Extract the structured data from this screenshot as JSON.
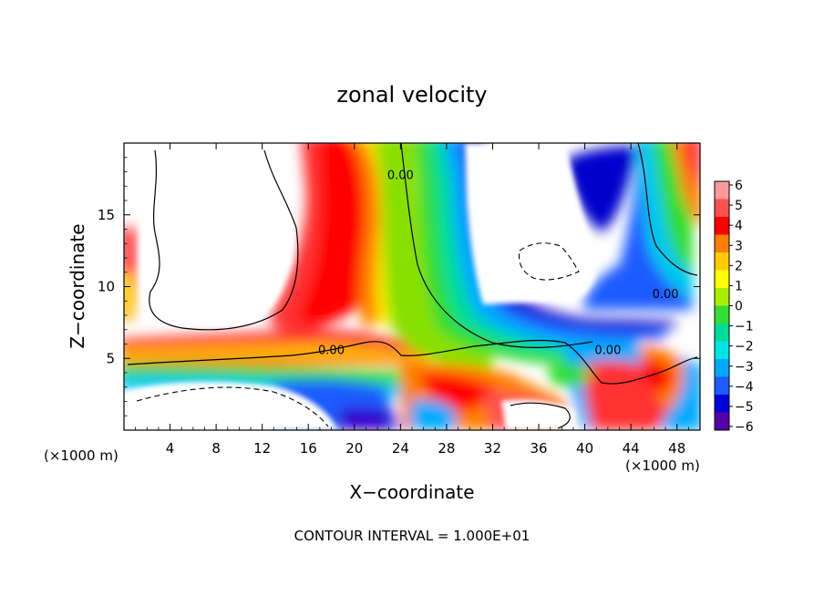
{
  "chart_data": {
    "type": "heatmap",
    "title": "zonal velocity",
    "xlabel": "X−coordinate",
    "ylabel": "Z−coordinate",
    "x_unit_left": "(×1000 m)",
    "x_unit_right": "(×1000 m)",
    "footer": "CONTOUR INTERVAL = 1.000E+01",
    "xlim": [
      0,
      50
    ],
    "ylim": [
      0,
      20
    ],
    "x_ticks": [
      "4",
      "8",
      "12",
      "16",
      "20",
      "24",
      "28",
      "32",
      "36",
      "40",
      "44",
      "48"
    ],
    "x_tick_values": [
      4,
      8,
      12,
      16,
      20,
      24,
      28,
      32,
      36,
      40,
      44,
      48
    ],
    "y_ticks": [
      "5",
      "10",
      "15"
    ],
    "y_tick_values": [
      5,
      10,
      15
    ],
    "colorbar": {
      "labels": [
        "6",
        "5",
        "4",
        "3",
        "2",
        "1",
        "0",
        "−1",
        "−2",
        "−3",
        "−4",
        "−5",
        "−6"
      ],
      "values": [
        6,
        5,
        4,
        3,
        2,
        1,
        0,
        -1,
        -2,
        -3,
        -4,
        -5,
        -6
      ],
      "colors": [
        "#ff9a9a",
        "#ff5050",
        "#ff0000",
        "#ff8000",
        "#ffcc00",
        "#ffff00",
        "#aaee00",
        "#33dd33",
        "#00dd99",
        "#00e5e5",
        "#00aaff",
        "#1e5cff",
        "#0000dd",
        "#5500aa"
      ]
    },
    "contour_labels": [
      {
        "text": "0.00",
        "x": 18,
        "y": 5.3
      },
      {
        "text": "0.00",
        "x": 24,
        "y": 17.5
      },
      {
        "text": "0.00",
        "x": 42,
        "y": 5.3
      },
      {
        "text": "0.00",
        "x": 47,
        "y": 9.2
      }
    ]
  }
}
